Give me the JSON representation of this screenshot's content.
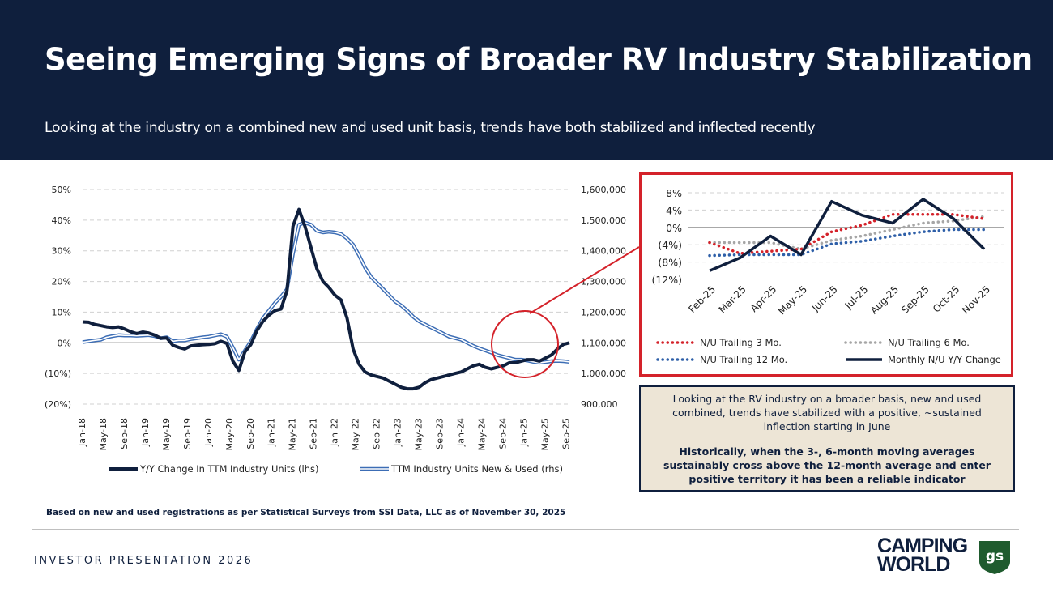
{
  "slide": {
    "title": "Seeing Emerging Signs of Broader RV Industry Stabilization",
    "subtitle": "Looking at the industry on a combined new and used unit basis, trends have both stabilized and inflected recently",
    "footnote": "Based on new and used registrations as per Statistical Surveys from SSI Data, LLC as of November 30, 2025",
    "footer": "INVESTOR PRESENTATION 2026",
    "logo_line1": "CAMPING",
    "logo_line2": "WORLD",
    "badge": "gs"
  },
  "callout": {
    "text1": "Looking at the RV industry on a broader basis, new and used combined, trends have stabilized with a positive, ~sustained inflection starting in June",
    "text2": "Historically, when the 3-, 6-month moving averages sustainably cross above the 12-month average and enter positive territory it has been a reliable indicator"
  },
  "colors": {
    "navy": "#0f1f3d",
    "blue_line": "#3c6db5",
    "red": "#d4222a",
    "gray_dots": "#a6a6a6",
    "blue_dots": "#2e5fa8"
  },
  "chart_data": [
    {
      "type": "line",
      "title": "",
      "x_tick_labels": [
        "Jan-18",
        "May-18",
        "Sep-18",
        "Jan-19",
        "May-19",
        "Sep-19",
        "Jan-20",
        "May-20",
        "Sep-20",
        "Jan-21",
        "May-21",
        "Sep-21",
        "Jan-22",
        "May-22",
        "Sep-22",
        "Jan-23",
        "May-23",
        "Sep-23",
        "Jan-24",
        "May-24",
        "Sep-24",
        "Jan-25",
        "May-25",
        "Sep-25"
      ],
      "y_left_ticks": [
        "50%",
        "40%",
        "30%",
        "20%",
        "10%",
        "0%",
        "(10%)",
        "(20%)"
      ],
      "y_left_range": [
        -20,
        50
      ],
      "y_right_ticks": [
        "1,600,000",
        "1,500,000",
        "1,400,000",
        "1,300,000",
        "1,200,000",
        "1,100,000",
        "1,000,000",
        "900,000"
      ],
      "y_right_range": [
        900000,
        1600000
      ],
      "legend": [
        "Y/Y Change In TTM Industry Units (lhs)",
        "TTM Industry Units New & Used (rhs)"
      ],
      "series": [
        {
          "name": "Y/Y Change In TTM Industry Units (lhs)",
          "axis": "left",
          "values": [
            6.8,
            6.7,
            6.0,
            5.6,
            5.2,
            5.0,
            5.2,
            4.5,
            3.6,
            3.0,
            3.5,
            3.2,
            2.5,
            1.5,
            1.6,
            -0.8,
            -1.5,
            -2.0,
            -1.0,
            -0.8,
            -0.6,
            -0.5,
            -0.3,
            0.5,
            -0.2,
            -6.0,
            -9.0,
            -3.0,
            -0.5,
            4.0,
            7.0,
            9.0,
            10.5,
            11.0,
            17.0,
            38.0,
            43.5,
            38.0,
            31.0,
            24.0,
            20.0,
            18.0,
            15.5,
            14.0,
            8.0,
            -2.0,
            -7.0,
            -9.5,
            -10.5,
            -11.0,
            -11.5,
            -12.5,
            -13.5,
            -14.5,
            -15.0,
            -15.0,
            -14.5,
            -13.0,
            -12.0,
            -11.5,
            -11.0,
            -10.5,
            -10.0,
            -9.5,
            -8.5,
            -7.5,
            -7.0,
            -8.0,
            -8.5,
            -8.0,
            -7.5,
            -6.5,
            -6.5,
            -6.0,
            -5.5,
            -5.5,
            -6.0,
            -5.0,
            -4.0,
            -2.0,
            -0.5,
            0.0
          ]
        },
        {
          "name": "TTM Industry Units New & Used (rhs)",
          "axis": "right",
          "values": [
            1102000,
            1105000,
            1108000,
            1110000,
            1118000,
            1122000,
            1125000,
            1124000,
            1124000,
            1123000,
            1124000,
            1125000,
            1122000,
            1115000,
            1118000,
            1105000,
            1108000,
            1108000,
            1112000,
            1115000,
            1118000,
            1120000,
            1124000,
            1128000,
            1120000,
            1085000,
            1045000,
            1075000,
            1105000,
            1145000,
            1180000,
            1205000,
            1230000,
            1250000,
            1275000,
            1390000,
            1485000,
            1492000,
            1485000,
            1465000,
            1460000,
            1462000,
            1460000,
            1455000,
            1440000,
            1420000,
            1385000,
            1345000,
            1315000,
            1295000,
            1275000,
            1255000,
            1235000,
            1222000,
            1205000,
            1185000,
            1170000,
            1160000,
            1150000,
            1140000,
            1130000,
            1120000,
            1115000,
            1110000,
            1100000,
            1090000,
            1082000,
            1075000,
            1068000,
            1060000,
            1055000,
            1050000,
            1045000,
            1045000,
            1042000,
            1038000,
            1035000,
            1037000,
            1040000,
            1041000,
            1040000,
            1038000
          ]
        }
      ],
      "annotation": "red circle highlighting most recent months"
    },
    {
      "type": "line",
      "title": "",
      "categories": [
        "Feb-25",
        "Mar-25",
        "Apr-25",
        "May-25",
        "Jun-25",
        "Jul-25",
        "Aug-25",
        "Sep-25",
        "Oct-25",
        "Nov-25"
      ],
      "y_ticks": [
        "8%",
        "4%",
        "0%",
        "(4%)",
        "(8%)",
        "(12%)"
      ],
      "y_range": [
        -12,
        8
      ],
      "legend": [
        "N/U Trailing 3 Mo.",
        "N/U Trailing 6 Mo.",
        "N/U Trailing 12 Mo.",
        "Monthly N/U Y/Y Change"
      ],
      "series": [
        {
          "name": "N/U Trailing 3 Mo.",
          "style": "dotted",
          "values": [
            -3.5,
            -6.0,
            -5.5,
            -5.0,
            -1.0,
            0.5,
            3.0,
            3.0,
            3.0,
            2.0
          ]
        },
        {
          "name": "N/U Trailing 6 Mo.",
          "style": "dotted",
          "values": [
            -3.5,
            -3.5,
            -3.5,
            -5.0,
            -3.0,
            -2.0,
            -0.5,
            1.0,
            1.5,
            2.5
          ]
        },
        {
          "name": "N/U Trailing 12 Mo.",
          "style": "dotted",
          "values": [
            -6.5,
            -6.3,
            -6.3,
            -6.3,
            -3.8,
            -3.2,
            -2.0,
            -1.0,
            -0.5,
            -0.5
          ]
        },
        {
          "name": "Monthly N/U Y/Y Change",
          "style": "solid",
          "values": [
            -10.0,
            -7.0,
            -2.0,
            -6.3,
            6.0,
            2.8,
            1.0,
            6.5,
            2.0,
            -5.0
          ]
        }
      ]
    }
  ]
}
